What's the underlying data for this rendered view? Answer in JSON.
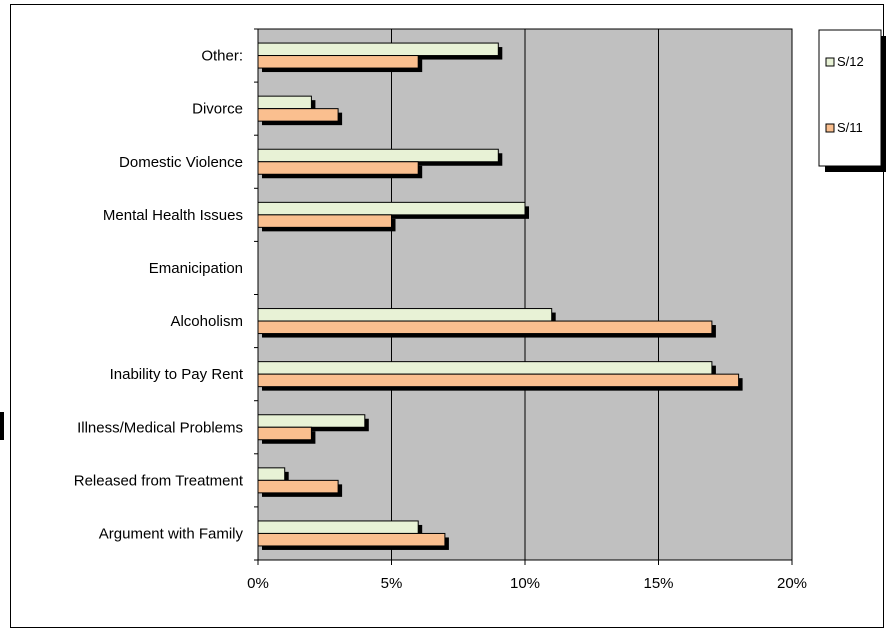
{
  "chart_data": {
    "type": "bar",
    "orientation": "horizontal",
    "categories": [
      "Other:",
      "Divorce",
      "Domestic Violence",
      "Mental Health Issues",
      "Emanicipation",
      "Alcoholism",
      "Inability to Pay Rent",
      "Illness/Medical Problems",
      "Released from Treatment",
      "Argument with Family"
    ],
    "series": [
      {
        "name": "S/12",
        "color": "#e8f2d6",
        "values": [
          9,
          2,
          9,
          10,
          0,
          11,
          17,
          4,
          1,
          6
        ]
      },
      {
        "name": "S/11",
        "color": "#fabf8f",
        "values": [
          6,
          3,
          6,
          5,
          0,
          17,
          18,
          2,
          3,
          7
        ]
      }
    ],
    "xlim": [
      0,
      20
    ],
    "xticks": [
      "0%",
      "5%",
      "10%",
      "15%",
      "20%"
    ],
    "grid": "vertical",
    "plot_background": "#c0c0c0",
    "legend_position": "top-right",
    "title": "",
    "xlabel": "",
    "ylabel": ""
  }
}
